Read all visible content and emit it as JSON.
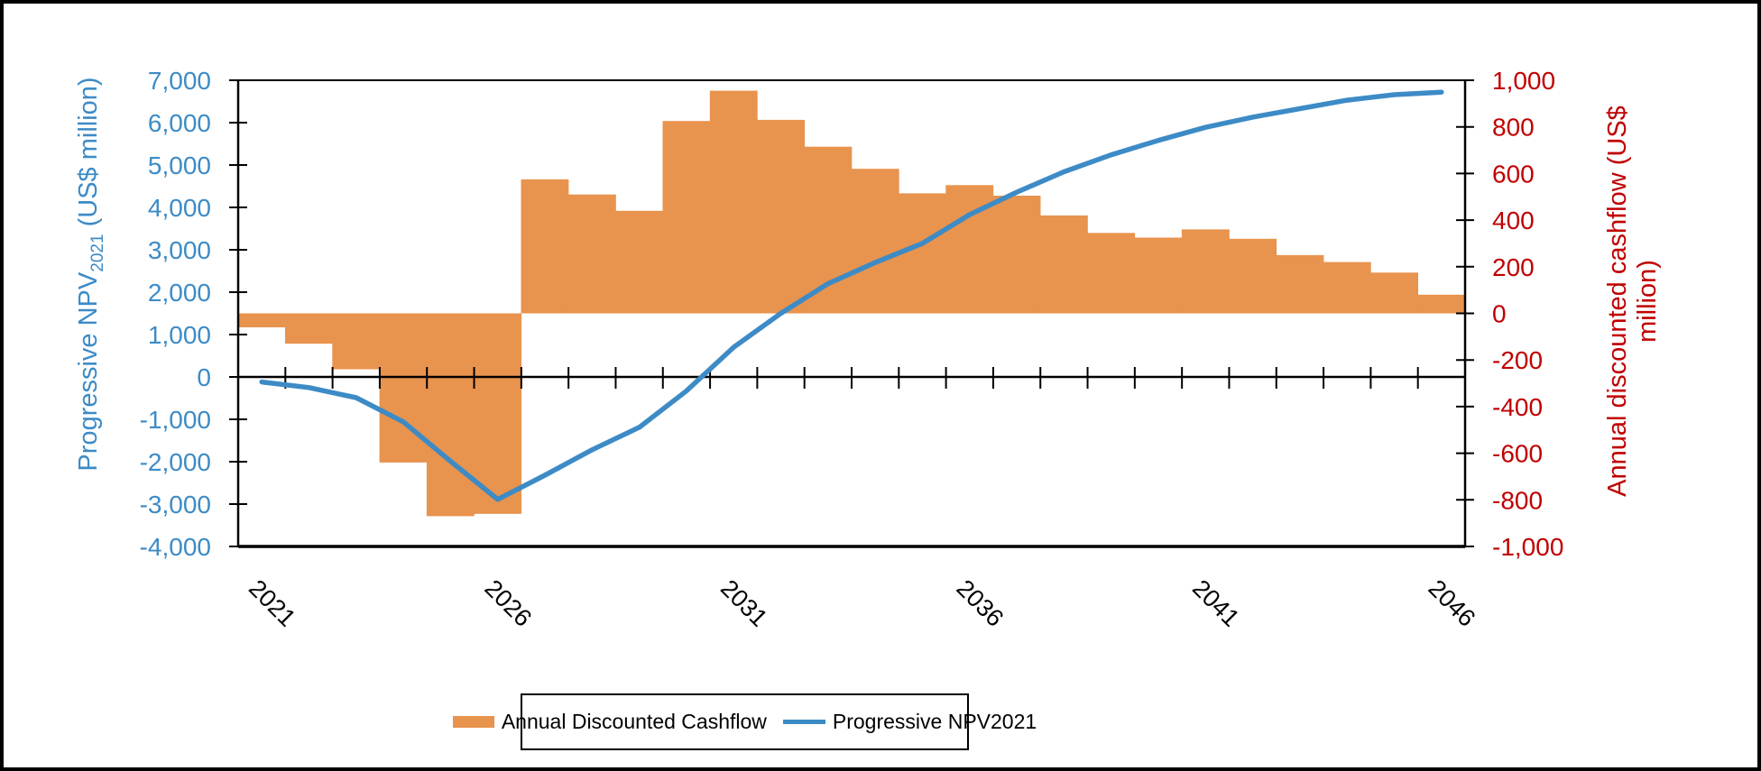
{
  "chart_data": {
    "type": "combo",
    "categories": [
      2021,
      2022,
      2023,
      2024,
      2025,
      2026,
      2027,
      2028,
      2029,
      2030,
      2031,
      2032,
      2033,
      2034,
      2035,
      2036,
      2037,
      2038,
      2039,
      2040,
      2041,
      2042,
      2043,
      2044,
      2045,
      2046
    ],
    "series": [
      {
        "name": "Annual Discounted Cashflow",
        "type": "bar",
        "axis": "right",
        "color": "#E8934E",
        "values": [
          -60,
          -130,
          -240,
          -640,
          -870,
          -860,
          575,
          510,
          440,
          825,
          955,
          830,
          715,
          620,
          515,
          550,
          505,
          420,
          345,
          325,
          360,
          320,
          250,
          220,
          175,
          80
        ]
      },
      {
        "name": "Progressive NPV2021",
        "type": "line",
        "axis": "left",
        "color": "#3D8BC6",
        "values": [
          -120,
          -250,
          -490,
          -1060,
          -1990,
          -2890,
          -2320,
          -1720,
          -1190,
          -330,
          700,
          1500,
          2200,
          2700,
          3150,
          3830,
          4360,
          4840,
          5240,
          5580,
          5890,
          6130,
          6330,
          6530,
          6660,
          6720
        ]
      }
    ],
    "left_axis": {
      "title_prefix": "Progressive NPV",
      "title_subscript": "2021",
      "title_suffix": " (US$ million)",
      "min": -4000,
      "max": 7000,
      "tick_step": 1000,
      "tick_labels": [
        "7,000",
        "6,000",
        "5,000",
        "4,000",
        "3,000",
        "2,000",
        "1,000",
        "0",
        "-1,000",
        "-2,000",
        "-3,000",
        "-4,000"
      ],
      "color": "#3D8BC6"
    },
    "right_axis": {
      "title_line1": "Annual discounted cashflow (US$",
      "title_line2": "million)",
      "min": -1000,
      "max": 1000,
      "tick_step": 200,
      "tick_labels": [
        "1,000",
        "800",
        "600",
        "400",
        "200",
        "0",
        "-200",
        "-400",
        "-600",
        "-800",
        "-1,000"
      ],
      "color": "#C00000"
    },
    "x_axis": {
      "tick_labels": [
        "2021",
        "2026",
        "2031",
        "2036",
        "2041",
        "2046"
      ],
      "label_positions": [
        0,
        5,
        10,
        15,
        20,
        25
      ],
      "color": "#000000"
    },
    "legend": {
      "items": [
        {
          "label": "Annual Discounted Cashflow",
          "swatch": "bar",
          "color": "#E8934E"
        },
        {
          "label": "Progressive NPV2021",
          "swatch": "line",
          "color": "#3D8BC6"
        }
      ]
    },
    "grid": false
  }
}
